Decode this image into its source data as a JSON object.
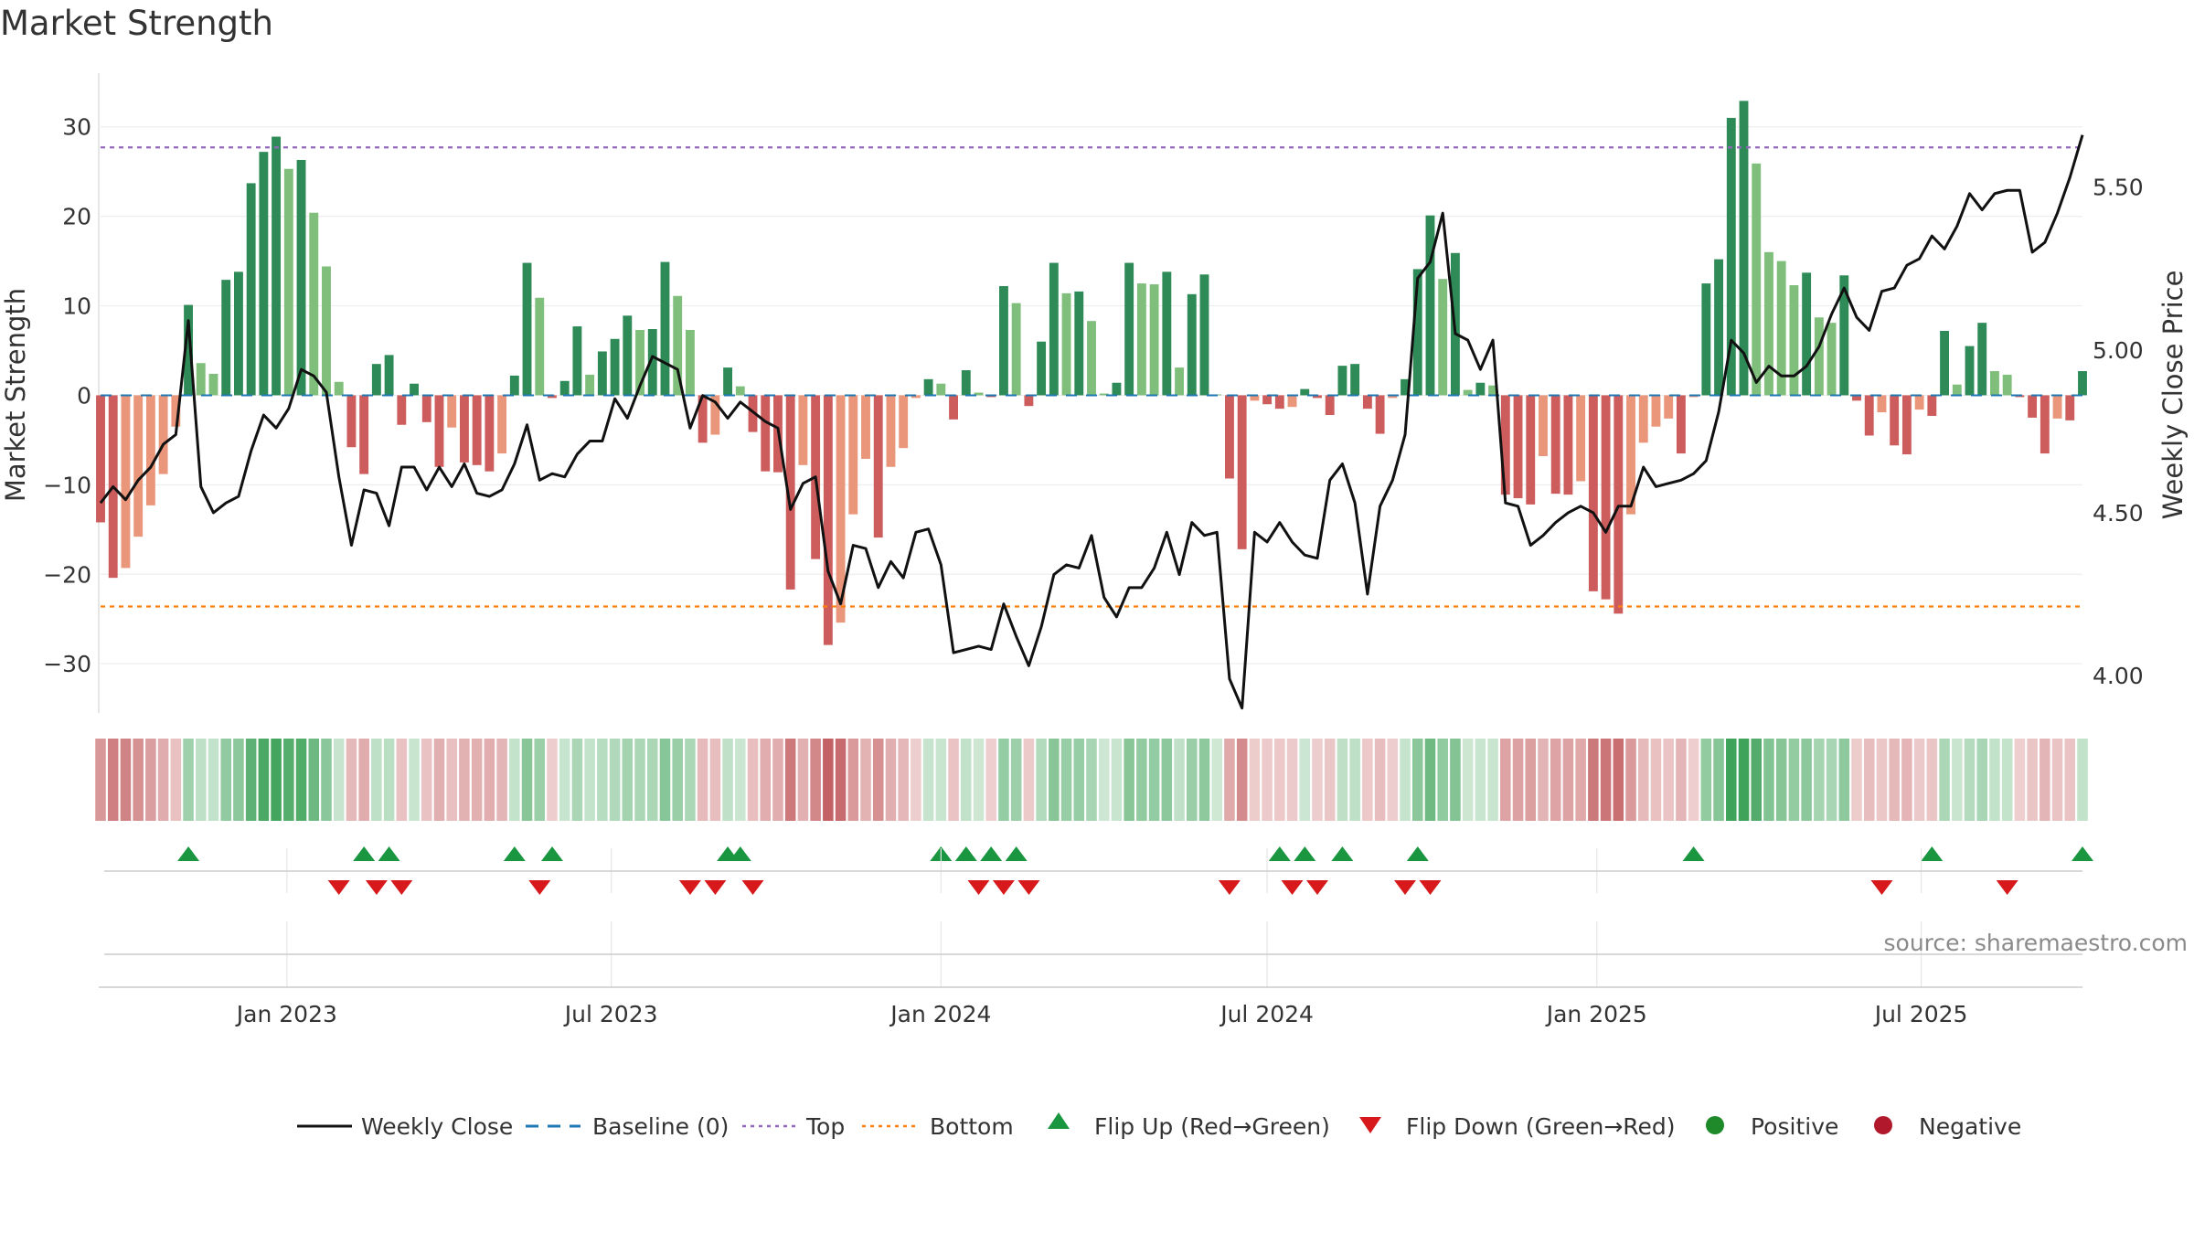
{
  "chart_data": {
    "type": "bar",
    "title": "Market Strength",
    "ylabel": "Market Strength",
    "y2label": "Weekly Close Price",
    "ylim": [
      -35.5,
      36
    ],
    "y2lim": [
      3.885,
      5.85
    ],
    "yticks": [
      30,
      20,
      10,
      0,
      -10,
      -20,
      -30
    ],
    "ytick_labels": [
      "30",
      "20",
      "10",
      "0",
      "−10",
      "−20",
      "−30"
    ],
    "y2ticks": [
      5.5,
      5.0,
      4.5,
      4.0
    ],
    "y2tick_labels": [
      "5.50",
      "5.00",
      "4.50",
      "4.00"
    ],
    "x_start": "2022-09-19",
    "x_end": "2025-09-29",
    "xticks": [
      "2023-01-01",
      "2023-07-01",
      "2024-01-01",
      "2024-07-01",
      "2025-01-01",
      "2025-07-01"
    ],
    "xtick_labels": [
      "Jan 2023",
      "Jul 2023",
      "Jan 2024",
      "Jul 2024",
      "Jan 2025",
      "Jul 2025"
    ],
    "top_level": 27.7,
    "bottom_level": -23.6,
    "baseline": 0,
    "strength": [
      -14.2,
      -20.4,
      -19.3,
      -15.8,
      -12.3,
      -8.8,
      -3.5,
      10.1,
      3.6,
      2.4,
      12.9,
      13.8,
      23.7,
      27.2,
      28.9,
      25.3,
      26.3,
      20.4,
      14.4,
      1.5,
      -5.8,
      -8.8,
      3.5,
      4.5,
      -3.3,
      1.3,
      -3.0,
      -8.0,
      -3.6,
      -7.5,
      -7.8,
      -8.5,
      -6.5,
      2.2,
      14.8,
      10.9,
      -0.3,
      1.6,
      7.7,
      2.3,
      4.9,
      6.3,
      8.9,
      7.3,
      7.4,
      14.9,
      11.1,
      7.3,
      -5.3,
      -4.4,
      3.1,
      1.0,
      -4.1,
      -8.5,
      -8.6,
      -21.7,
      -7.8,
      -18.3,
      -27.9,
      -25.4,
      -13.3,
      -7.1,
      -15.9,
      -8.0,
      -5.9,
      -0.3,
      1.8,
      1.3,
      -2.7,
      2.8,
      0.3,
      -0.2,
      12.2,
      10.3,
      -1.2,
      6.0,
      14.8,
      11.4,
      11.6,
      8.3,
      0.2,
      1.4,
      14.8,
      12.5,
      12.4,
      13.8,
      3.1,
      11.3,
      13.5,
      0.1,
      -9.3,
      -17.2,
      -0.6,
      -1.0,
      -1.5,
      -1.3,
      0.7,
      -0.3,
      -2.2,
      3.3,
      3.5,
      -1.5,
      -4.3,
      -0.3,
      1.8,
      14.1,
      20.1,
      13.0,
      15.9,
      0.6,
      1.4,
      1.1,
      -11.1,
      -11.5,
      -12.2,
      -6.8,
      -11.0,
      -11.1,
      -9.6,
      -21.9,
      -22.8,
      -24.4,
      -13.3,
      -5.3,
      -3.5,
      -2.6,
      -6.5,
      -0.2,
      12.5,
      15.2,
      31.0,
      32.9,
      25.9,
      16.0,
      15.0,
      12.3,
      13.7,
      8.7,
      8.1,
      13.4,
      -0.6,
      -4.5,
      -1.9,
      -5.6,
      -6.6,
      -1.6,
      -2.3,
      7.2,
      1.2,
      5.5,
      8.1,
      2.7,
      2.3,
      -0.2,
      -2.5,
      -6.5,
      -2.6,
      -2.8,
      2.7
    ],
    "weekly_close": [
      4.53,
      4.58,
      4.54,
      4.6,
      4.64,
      4.71,
      4.74,
      5.09,
      4.58,
      4.5,
      4.53,
      4.55,
      4.69,
      4.8,
      4.76,
      4.82,
      4.94,
      4.92,
      4.87,
      4.61,
      4.4,
      4.57,
      4.56,
      4.46,
      4.64,
      4.64,
      4.57,
      4.64,
      4.58,
      4.65,
      4.56,
      4.55,
      4.57,
      4.65,
      4.77,
      4.6,
      4.62,
      4.61,
      4.68,
      4.72,
      4.72,
      4.85,
      4.79,
      4.89,
      4.98,
      4.96,
      4.94,
      4.76,
      4.86,
      4.84,
      4.79,
      4.84,
      4.81,
      4.78,
      4.76,
      4.51,
      4.59,
      4.61,
      4.32,
      4.22,
      4.4,
      4.39,
      4.27,
      4.35,
      4.3,
      4.44,
      4.45,
      4.34,
      4.07,
      4.08,
      4.09,
      4.08,
      4.22,
      4.12,
      4.03,
      4.15,
      4.31,
      4.34,
      4.33,
      4.43,
      4.24,
      4.18,
      4.27,
      4.27,
      4.33,
      4.44,
      4.31,
      4.47,
      4.43,
      4.44,
      3.99,
      3.9,
      4.44,
      4.41,
      4.47,
      4.41,
      4.37,
      4.36,
      4.6,
      4.65,
      4.53,
      4.25,
      4.52,
      4.6,
      4.74,
      5.22,
      5.27,
      5.42,
      5.05,
      5.03,
      4.94,
      5.03,
      4.53,
      4.52,
      4.4,
      4.43,
      4.47,
      4.5,
      4.52,
      4.5,
      4.44,
      4.52,
      4.52,
      4.64,
      4.58,
      4.59,
      4.6,
      4.62,
      4.66,
      4.81,
      5.03,
      4.99,
      4.9,
      4.95,
      4.92,
      4.92,
      4.95,
      5.01,
      5.11,
      5.19,
      5.1,
      5.06,
      5.18,
      5.19,
      5.26,
      5.28,
      5.35,
      5.31,
      5.38,
      5.48,
      5.43,
      5.48,
      5.49,
      5.49,
      5.3,
      5.33,
      5.42,
      5.53,
      5.66
    ],
    "flip_up": [
      "2022-11-07",
      "2023-02-13",
      "2023-02-27",
      "2023-05-08",
      "2023-05-29",
      "2023-09-04",
      "2023-09-11",
      "2024-01-01",
      "2024-01-15",
      "2024-01-29",
      "2024-02-12",
      "2024-07-08",
      "2024-07-22",
      "2024-08-12",
      "2024-09-23",
      "2025-02-24",
      "2025-07-07",
      "2025-09-29"
    ],
    "flip_down": [
      "2023-01-30",
      "2023-02-20",
      "2023-03-06",
      "2023-05-22",
      "2023-08-14",
      "2023-08-28",
      "2023-09-18",
      "2024-01-22",
      "2024-02-05",
      "2024-02-19",
      "2024-06-10",
      "2024-07-15",
      "2024-07-29",
      "2024-09-16",
      "2024-09-30",
      "2025-06-09",
      "2025-08-18"
    ]
  },
  "legend": {
    "weekly_close": "Weekly Close",
    "baseline": "Baseline (0)",
    "top": "Top",
    "bottom": "Bottom",
    "flip_up": "Flip Up (Red→Green)",
    "flip_down": "Flip Down (Green→Red)",
    "positive": "Positive",
    "negative": "Negative"
  },
  "source": "source: sharemaestro.com",
  "colors": {
    "positive_strong": "#2e8b57",
    "positive_weak": "#7fbf7b",
    "negative_strong": "#cd5c5c",
    "negative_weak": "#e9967a",
    "price_line": "#111111",
    "baseline": "#1f77b4",
    "top": "#9467bd",
    "bottom": "#ff7f0e",
    "flip_up": "#1a9641",
    "flip_down": "#d7191c",
    "positive_dot": "#1f8a2a",
    "negative_dot": "#b2182b"
  }
}
